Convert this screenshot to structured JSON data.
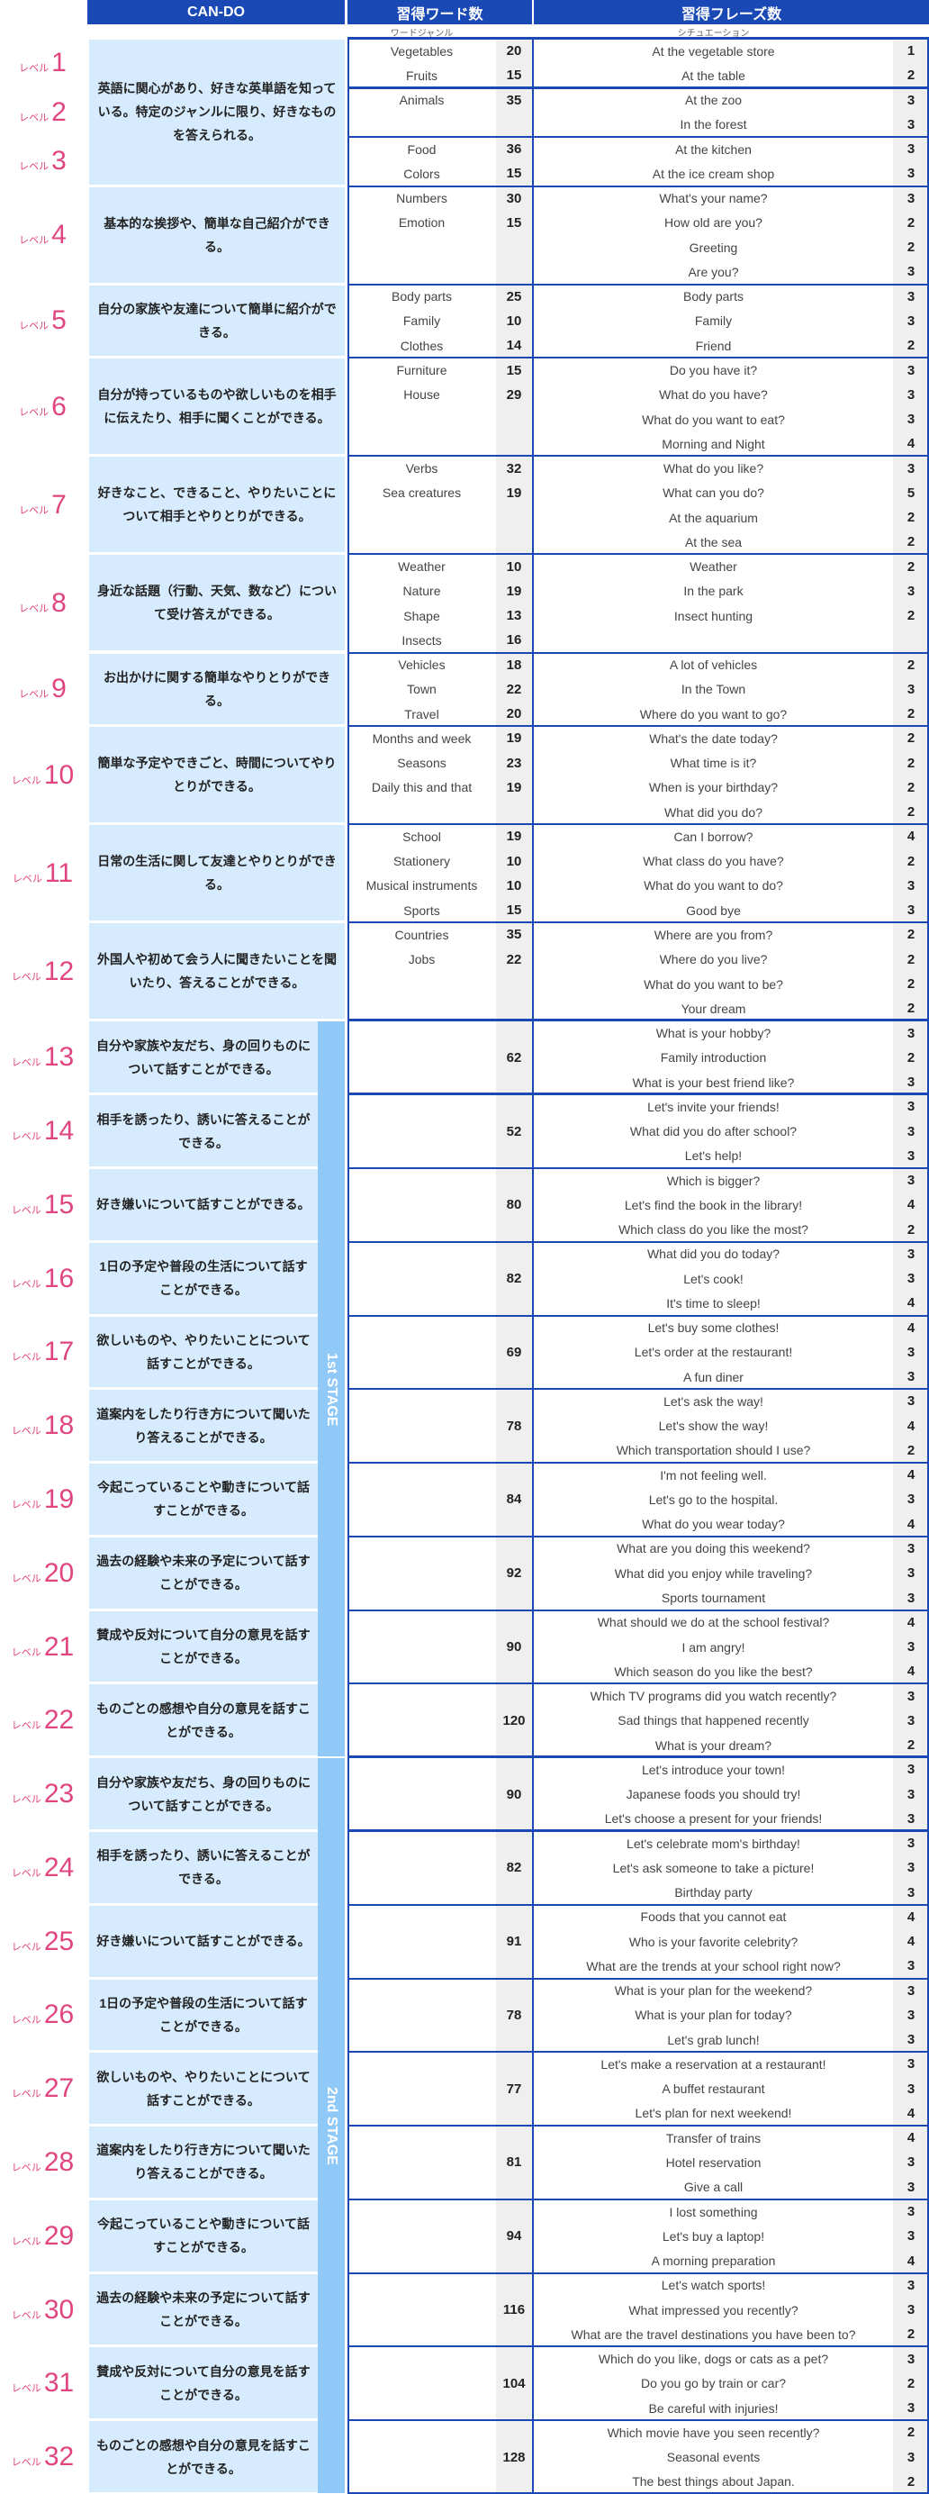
{
  "header": {
    "cando": "CAN-DO",
    "words": "習得ワード数",
    "phrases": "習得フレーズ数",
    "words_sub": "ワードジャンル",
    "phrases_sub": "シチュエーション"
  },
  "level_prefix": "レベル",
  "colors": {
    "header": "#1a49b5",
    "cando_bg": "#d6ebfd",
    "stage_bg": "#90c8f8",
    "level_pink": "#e0457f",
    "count_bg": "#efefef"
  },
  "stages": [
    {
      "label": "1st STAGE",
      "from": 13,
      "to": 22
    },
    {
      "label": "2nd STAGE",
      "from": 23,
      "to": 32
    }
  ],
  "cando_groups": [
    {
      "levels": [
        1,
        2,
        3
      ],
      "text": "英語に関心があり、好きな英単語を知っている。特定のジャンルに限り、好きなものを答えられる。"
    }
  ],
  "levels": [
    {
      "level": 1,
      "words": [
        {
          "name": "Vegetables",
          "count": 20
        },
        {
          "name": "Fruits",
          "count": 15
        }
      ],
      "phrases": [
        {
          "text": "At the vegetable store",
          "count": 1
        },
        {
          "text": "At the table",
          "count": 2
        }
      ]
    },
    {
      "level": 2,
      "words": [
        {
          "name": "Animals",
          "count": 35
        }
      ],
      "phrases": [
        {
          "text": "At the zoo",
          "count": 3
        },
        {
          "text": "In the forest",
          "count": 3
        }
      ]
    },
    {
      "level": 3,
      "words": [
        {
          "name": "Food",
          "count": 36
        },
        {
          "name": "Colors",
          "count": 15
        }
      ],
      "phrases": [
        {
          "text": "At the kitchen",
          "count": 3
        },
        {
          "text": "At the ice cream shop",
          "count": 3
        }
      ]
    },
    {
      "level": 4,
      "cando": "基本的な挨拶や、簡単な自己紹介ができる。",
      "words": [
        {
          "name": "Numbers",
          "count": 30
        },
        {
          "name": "Emotion",
          "count": 15
        }
      ],
      "phrases": [
        {
          "text": "What's your name?",
          "count": 3
        },
        {
          "text": "How old are you?",
          "count": 2
        },
        {
          "text": "Greeting",
          "count": 2
        },
        {
          "text": "Are you?",
          "count": 3
        }
      ]
    },
    {
      "level": 5,
      "cando": "自分の家族や友達について簡単に紹介ができる。",
      "words": [
        {
          "name": "Body parts",
          "count": 25
        },
        {
          "name": "Family",
          "count": 10
        },
        {
          "name": "Clothes",
          "count": 14
        }
      ],
      "phrases": [
        {
          "text": "Body parts",
          "count": 3
        },
        {
          "text": "Family",
          "count": 3
        },
        {
          "text": "Friend",
          "count": 2
        }
      ]
    },
    {
      "level": 6,
      "cando": "自分が持っているものや欲しいものを相手に伝えたり、相手に聞くことができる。",
      "words": [
        {
          "name": "Furniture",
          "count": 15
        },
        {
          "name": "House",
          "count": 29
        }
      ],
      "phrases": [
        {
          "text": "Do you have it?",
          "count": 3
        },
        {
          "text": "What do you have?",
          "count": 3
        },
        {
          "text": "What do you want to eat?",
          "count": 3
        },
        {
          "text": "Morning and Night",
          "count": 4
        }
      ]
    },
    {
      "level": 7,
      "cando": "好きなこと、できること、やりたいことについて相手とやりとりができる。",
      "words": [
        {
          "name": "Verbs",
          "count": 32
        },
        {
          "name": "Sea creatures",
          "count": 19
        }
      ],
      "phrases": [
        {
          "text": "What do you like?",
          "count": 3
        },
        {
          "text": "What can you do?",
          "count": 5
        },
        {
          "text": "At the aquarium",
          "count": 2
        },
        {
          "text": "At the sea",
          "count": 2
        }
      ]
    },
    {
      "level": 8,
      "cando": "身近な話題（行動、天気、数など）について受け答えができる。",
      "words": [
        {
          "name": "Weather",
          "count": 10
        },
        {
          "name": "Nature",
          "count": 19
        },
        {
          "name": "Shape",
          "count": 13
        },
        {
          "name": "Insects",
          "count": 16
        }
      ],
      "phrases": [
        {
          "text": "Weather",
          "count": 2
        },
        {
          "text": "In the park",
          "count": 3
        },
        {
          "text": "Insect hunting",
          "count": 2
        }
      ]
    },
    {
      "level": 9,
      "cando": "お出かけに関する簡単なやりとりができる。",
      "words": [
        {
          "name": "Vehicles",
          "count": 18
        },
        {
          "name": "Town",
          "count": 22
        },
        {
          "name": "Travel",
          "count": 20
        }
      ],
      "phrases": [
        {
          "text": "A lot of vehicles",
          "count": 2
        },
        {
          "text": "In the Town",
          "count": 3
        },
        {
          "text": "Where do you want to go?",
          "count": 2
        }
      ]
    },
    {
      "level": 10,
      "cando": "簡単な予定やできごと、時間についてやりとりができる。",
      "words": [
        {
          "name": "Months and week",
          "count": 19
        },
        {
          "name": "Seasons",
          "count": 23
        },
        {
          "name": "Daily this and that",
          "count": 19
        }
      ],
      "phrases": [
        {
          "text": "What's the date today?",
          "count": 2
        },
        {
          "text": "What time is it?",
          "count": 2
        },
        {
          "text": "When is your birthday?",
          "count": 2
        },
        {
          "text": "What did you do?",
          "count": 2
        }
      ]
    },
    {
      "level": 11,
      "cando": "日常の生活に関して友達とやりとりができる。",
      "words": [
        {
          "name": "School",
          "count": 19
        },
        {
          "name": "Stationery",
          "count": 10
        },
        {
          "name": "Musical instruments",
          "count": 10
        },
        {
          "name": "Sports",
          "count": 15
        }
      ],
      "phrases": [
        {
          "text": "Can I borrow?",
          "count": 4
        },
        {
          "text": "What class do you have?",
          "count": 2
        },
        {
          "text": "What do you want to do?",
          "count": 3
        },
        {
          "text": "Good bye",
          "count": 3
        }
      ]
    },
    {
      "level": 12,
      "cando": "外国人や初めて会う人に聞きたいことを聞いたり、答えることができる。",
      "words": [
        {
          "name": "Countries",
          "count": 35
        },
        {
          "name": "Jobs",
          "count": 22
        }
      ],
      "phrases": [
        {
          "text": "Where are you from?",
          "count": 2
        },
        {
          "text": "Where do you live?",
          "count": 2
        },
        {
          "text": "What do you want to be?",
          "count": 2
        },
        {
          "text": "Your dream",
          "count": 2
        }
      ]
    },
    {
      "level": 13,
      "cando": "自分や家族や友だち、身の回りものについて話すことができる。",
      "word_total": 62,
      "phrases": [
        {
          "text": "What is your hobby?",
          "count": 3
        },
        {
          "text": "Family introduction",
          "count": 2
        },
        {
          "text": "What is your best friend like?",
          "count": 3
        }
      ]
    },
    {
      "level": 14,
      "cando": "相手を誘ったり、誘いに答えることができる。",
      "word_total": 52,
      "phrases": [
        {
          "text": "Let's invite your friends!",
          "count": 3
        },
        {
          "text": "What did you do after school?",
          "count": 3
        },
        {
          "text": "Let's help!",
          "count": 3
        }
      ]
    },
    {
      "level": 15,
      "cando": "好き嫌いについて話すことができる。",
      "word_total": 80,
      "phrases": [
        {
          "text": "Which is bigger?",
          "count": 3
        },
        {
          "text": "Let's find the book in the library!",
          "count": 4
        },
        {
          "text": "Which class do you like the most?",
          "count": 2
        }
      ]
    },
    {
      "level": 16,
      "cando": "1日の予定や普段の生活について話すことができる。",
      "word_total": 82,
      "phrases": [
        {
          "text": "What did you do today?",
          "count": 3
        },
        {
          "text": "Let's cook!",
          "count": 3
        },
        {
          "text": "It's time to sleep!",
          "count": 4
        }
      ]
    },
    {
      "level": 17,
      "cando": "欲しいものや、やりたいことについて話すことができる。",
      "word_total": 69,
      "phrases": [
        {
          "text": "Let's buy some clothes!",
          "count": 4
        },
        {
          "text": "Let's order at the restaurant!",
          "count": 3
        },
        {
          "text": "A fun diner",
          "count": 3
        }
      ]
    },
    {
      "level": 18,
      "cando": "道案内をしたり行き方について聞いたり答えることができる。",
      "word_total": 78,
      "phrases": [
        {
          "text": "Let's ask the way!",
          "count": 3
        },
        {
          "text": "Let's show the way!",
          "count": 4
        },
        {
          "text": "Which transportation should I use?",
          "count": 2
        }
      ]
    },
    {
      "level": 19,
      "cando": "今起こっていることや動きについて話すことができる。",
      "word_total": 84,
      "phrases": [
        {
          "text": "I'm not feeling well.",
          "count": 4
        },
        {
          "text": "Let's go to the hospital.",
          "count": 3
        },
        {
          "text": "What do you wear today?",
          "count": 4
        }
      ]
    },
    {
      "level": 20,
      "cando": "過去の経験や未来の予定について話すことができる。",
      "word_total": 92,
      "phrases": [
        {
          "text": "What are you doing this weekend?",
          "count": 3
        },
        {
          "text": "What did you enjoy while traveling?",
          "count": 3
        },
        {
          "text": "Sports tournament",
          "count": 3
        }
      ]
    },
    {
      "level": 21,
      "cando": "賛成や反対について自分の意見を話すことができる。",
      "word_total": 90,
      "phrases": [
        {
          "text": "What should we do at the school festival?",
          "count": 4
        },
        {
          "text": "I am angry!",
          "count": 3
        },
        {
          "text": "Which season do you like the best?",
          "count": 4
        }
      ]
    },
    {
      "level": 22,
      "cando": "ものごとの感想や自分の意見を話すことができる。",
      "word_total": 120,
      "phrases": [
        {
          "text": "Which TV programs did you watch recently?",
          "count": 3
        },
        {
          "text": "Sad things that happened recently",
          "count": 3
        },
        {
          "text": "What is your dream?",
          "count": 2
        }
      ]
    },
    {
      "level": 23,
      "cando": "自分や家族や友だち、身の回りものについて話すことができる。",
      "word_total": 90,
      "phrases": [
        {
          "text": "Let's introduce your town!",
          "count": 3
        },
        {
          "text": "Japanese foods you should try!",
          "count": 3
        },
        {
          "text": "Let's choose a present for your friends!",
          "count": 3
        }
      ]
    },
    {
      "level": 24,
      "cando": "相手を誘ったり、誘いに答えることができる。",
      "word_total": 82,
      "phrases": [
        {
          "text": "Let's celebrate mom's birthday!",
          "count": 3
        },
        {
          "text": "Let's ask someone to take a picture!",
          "count": 3
        },
        {
          "text": "Birthday party",
          "count": 3
        }
      ]
    },
    {
      "level": 25,
      "cando": "好き嫌いについて話すことができる。",
      "word_total": 91,
      "phrases": [
        {
          "text": "Foods that you cannot eat",
          "count": 4
        },
        {
          "text": "Who is your favorite celebrity?",
          "count": 4
        },
        {
          "text": "What are the trends at your school right now?",
          "count": 3
        }
      ]
    },
    {
      "level": 26,
      "cando": "1日の予定や普段の生活について話すことができる。",
      "word_total": 78,
      "phrases": [
        {
          "text": "What is your plan for the weekend?",
          "count": 3
        },
        {
          "text": "What is your plan for today?",
          "count": 3
        },
        {
          "text": "Let's grab lunch!",
          "count": 3
        }
      ]
    },
    {
      "level": 27,
      "cando": "欲しいものや、やりたいことについて話すことができる。",
      "word_total": 77,
      "phrases": [
        {
          "text": "Let's make a reservation at a restaurant!",
          "count": 3
        },
        {
          "text": "A buffet restaurant",
          "count": 3
        },
        {
          "text": "Let's plan for next weekend!",
          "count": 4
        }
      ]
    },
    {
      "level": 28,
      "cando": "道案内をしたり行き方について聞いたり答えることができる。",
      "word_total": 81,
      "phrases": [
        {
          "text": "Transfer of trains",
          "count": 4
        },
        {
          "text": "Hotel reservation",
          "count": 3
        },
        {
          "text": "Give a call",
          "count": 3
        }
      ]
    },
    {
      "level": 29,
      "cando": "今起こっていることや動きについて話すことができる。",
      "word_total": 94,
      "phrases": [
        {
          "text": "I lost something",
          "count": 3
        },
        {
          "text": "Let's buy a laptop!",
          "count": 3
        },
        {
          "text": "A morning preparation",
          "count": 4
        }
      ]
    },
    {
      "level": 30,
      "cando": "過去の経験や未来の予定について話すことができる。",
      "word_total": 116,
      "phrases": [
        {
          "text": "Let's watch sports!",
          "count": 3
        },
        {
          "text": "What impressed you recently?",
          "count": 3
        },
        {
          "text": "What are the travel destinations you have been to?",
          "count": 2
        }
      ]
    },
    {
      "level": 31,
      "cando": "賛成や反対について自分の意見を話すことができる。",
      "word_total": 104,
      "phrases": [
        {
          "text": "Which do you like, dogs or cats as a pet?",
          "count": 3
        },
        {
          "text": "Do you go by train or car?",
          "count": 2
        },
        {
          "text": "Be careful with injuries!",
          "count": 3
        }
      ]
    },
    {
      "level": 32,
      "cando": "ものごとの感想や自分の意見を話すことができる。",
      "word_total": 128,
      "phrases": [
        {
          "text": "Which movie have you seen recently?",
          "count": 2
        },
        {
          "text": "Seasonal events",
          "count": 3
        },
        {
          "text": "The best things about Japan.",
          "count": 2
        }
      ]
    }
  ]
}
